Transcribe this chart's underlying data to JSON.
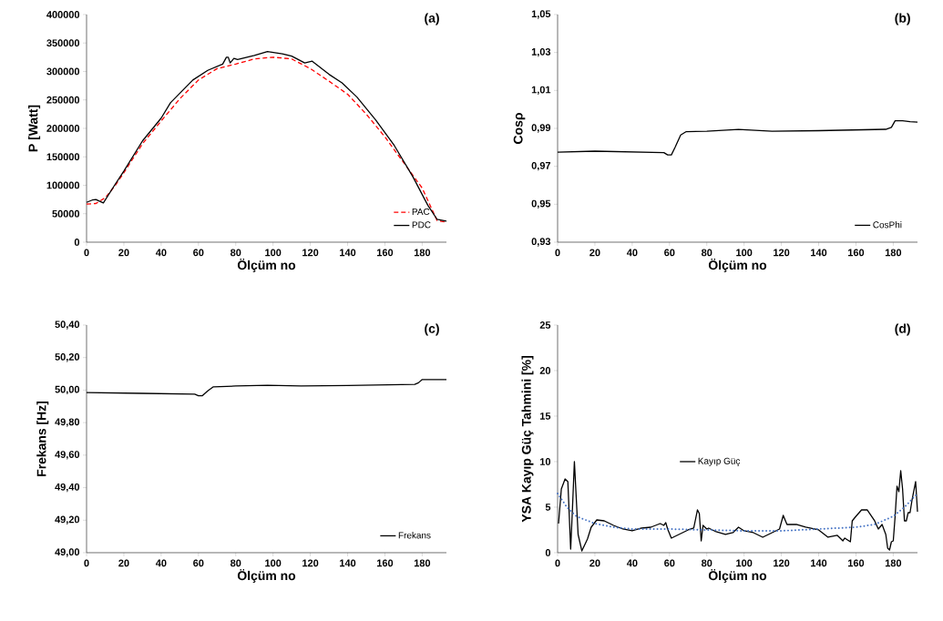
{
  "chart_data": [
    {
      "type": "line",
      "xlabel": "Ölçüm no",
      "ylabel": "P [Watt]",
      "annotations": [
        "(a)"
      ],
      "legend": "bottom right",
      "xlim": [
        0,
        193
      ],
      "xticks": [
        0,
        20,
        40,
        60,
        80,
        100,
        120,
        140,
        160,
        180
      ],
      "ylim": [
        0,
        400000
      ],
      "yticks": [
        0,
        50000,
        100000,
        150000,
        200000,
        250000,
        300000,
        350000,
        400000
      ],
      "line_style": "solid",
      "series": [
        {
          "name": "PAC",
          "color": "#ff0000",
          "line_style": "dashed",
          "x": [
            0,
            5,
            10,
            15,
            20,
            30,
            40,
            50,
            60,
            70,
            80,
            90,
            100,
            110,
            120,
            130,
            140,
            150,
            160,
            170,
            180,
            188,
            193
          ],
          "values": [
            67000,
            68000,
            78000,
            98000,
            122000,
            173000,
            213000,
            252000,
            285000,
            305000,
            313000,
            322000,
            325000,
            322000,
            305000,
            283000,
            260000,
            225000,
            185000,
            140000,
            95000,
            38000,
            35000
          ]
        },
        {
          "name": "PDC",
          "color": "#000000",
          "x": [
            0,
            3,
            5,
            9,
            15,
            20,
            30,
            40,
            45,
            57,
            65,
            73,
            75,
            76,
            77,
            79,
            81,
            90,
            97,
            105,
            110,
            117,
            121,
            130,
            137,
            145,
            155,
            165,
            175,
            183,
            188,
            193
          ],
          "values": [
            70000,
            74000,
            75000,
            69000,
            100000,
            125000,
            178000,
            218000,
            245000,
            285000,
            302000,
            313000,
            325000,
            325000,
            315000,
            323000,
            321000,
            328000,
            335000,
            331000,
            327000,
            315000,
            318000,
            295000,
            280000,
            255000,
            215000,
            170000,
            115000,
            65000,
            40000,
            37000
          ]
        }
      ]
    },
    {
      "type": "line",
      "xlabel": "Ölçüm no",
      "ylabel": "Cosρ",
      "annotations": [
        "(b)"
      ],
      "legend": "bottom right",
      "xlim": [
        0,
        193
      ],
      "xticks": [
        0,
        20,
        40,
        60,
        80,
        100,
        120,
        140,
        160,
        180
      ],
      "ylim": [
        0.93,
        1.05
      ],
      "yticks": [
        {
          "value": 0.93,
          "label": "0,93"
        },
        {
          "value": 0.95,
          "label": "0,95"
        },
        {
          "value": 0.97,
          "label": "0,97"
        },
        {
          "value": 0.99,
          "label": "0,99"
        },
        {
          "value": 1.01,
          "label": "1,01"
        },
        {
          "value": 1.03,
          "label": "1,03"
        },
        {
          "value": 1.05,
          "label": "1,05"
        }
      ],
      "line_style": "solid",
      "series": [
        {
          "name": "CosPhi",
          "color": "#000000",
          "x": [
            0,
            20,
            57,
            59,
            61,
            63,
            66,
            69,
            80,
            97,
            115,
            140,
            176,
            179,
            181,
            185,
            189,
            193
          ],
          "values": [
            0.9775,
            0.978,
            0.9772,
            0.976,
            0.976,
            0.98,
            0.9865,
            0.9883,
            0.9885,
            0.9895,
            0.9885,
            0.9888,
            0.9895,
            0.9905,
            0.994,
            0.994,
            0.9935,
            0.9933
          ]
        }
      ]
    },
    {
      "type": "line",
      "xlabel": "Ölçüm no",
      "ylabel": "Frekans [Hz]",
      "annotations": [
        "(c)"
      ],
      "legend": "bottom right",
      "xlim": [
        0,
        193
      ],
      "xticks": [
        0,
        20,
        40,
        60,
        80,
        100,
        120,
        140,
        160,
        180
      ],
      "ylim": [
        49.0,
        50.4
      ],
      "yticks": [
        {
          "value": 49.0,
          "label": "49,00"
        },
        {
          "value": 49.2,
          "label": "49,20"
        },
        {
          "value": 49.4,
          "label": "49,40"
        },
        {
          "value": 49.6,
          "label": "49,60"
        },
        {
          "value": 49.8,
          "label": "49,80"
        },
        {
          "value": 50.0,
          "label": "50,00"
        },
        {
          "value": 50.2,
          "label": "50,20"
        },
        {
          "value": 50.4,
          "label": "50,40"
        }
      ],
      "line_style": "solid",
      "series": [
        {
          "name": "Frekans",
          "color": "#000000",
          "x": [
            0,
            30,
            58,
            60,
            62,
            65,
            68,
            80,
            97,
            115,
            140,
            176,
            178,
            180,
            193
          ],
          "values": [
            49.985,
            49.98,
            49.975,
            49.965,
            49.965,
            49.995,
            50.02,
            50.025,
            50.03,
            50.025,
            50.028,
            50.035,
            50.045,
            50.065,
            50.065
          ]
        }
      ]
    },
    {
      "type": "line",
      "xlabel": "Ölçüm no",
      "ylabel": "YSA Kayıp Güç Tahmini [%]",
      "annotations": [
        "(d)"
      ],
      "legend": "left",
      "xlim": [
        0,
        193
      ],
      "xticks": [
        0,
        20,
        40,
        60,
        80,
        100,
        120,
        140,
        160,
        180
      ],
      "ylim": [
        0,
        25
      ],
      "yticks": [
        0,
        5,
        10,
        15,
        20,
        25
      ],
      "line_style": "solid",
      "series": [
        {
          "name": "Kayıp Güç",
          "color": "#000000",
          "x": [
            0.5,
            2,
            4,
            5.5,
            7,
            8,
            9,
            10,
            11,
            13,
            16,
            18,
            21,
            25,
            30,
            35,
            40,
            45,
            50,
            55,
            57,
            58,
            59,
            61,
            65,
            70,
            73,
            75,
            76,
            77,
            78,
            80,
            81,
            85,
            90,
            94,
            97,
            100,
            105,
            110,
            115,
            119,
            121,
            123,
            128,
            133,
            140,
            145,
            150,
            153,
            154,
            157,
            158,
            160,
            163,
            166,
            170,
            172,
            174,
            176,
            177,
            178,
            179,
            180,
            181,
            182,
            183,
            184,
            185,
            186,
            187,
            188,
            189,
            190,
            192,
            193
          ],
          "values": [
            3.2,
            7,
            8.1,
            7.8,
            0.4,
            5,
            10,
            6,
            2,
            0.2,
            1.5,
            2.8,
            3.6,
            3.5,
            3,
            2.6,
            2.4,
            2.7,
            2.8,
            3.2,
            3,
            3.3,
            2.6,
            1.6,
            2,
            2.5,
            2.7,
            4.7,
            4.3,
            1.3,
            3,
            2.6,
            2.7,
            2.3,
            2,
            2.2,
            2.8,
            2.4,
            2.2,
            1.7,
            2.2,
            2.6,
            4.1,
            3.1,
            3.1,
            2.8,
            2.5,
            1.7,
            1.9,
            1.3,
            1.6,
            1.2,
            3.5,
            4,
            4.7,
            4.7,
            3.5,
            2.6,
            3.1,
            2,
            0.5,
            0.3,
            1.2,
            1.3,
            4,
            7.3,
            6.7,
            9,
            7,
            3.5,
            3.5,
            4.4,
            4.4,
            5.7,
            7.8,
            4.5
          ]
        },
        {
          "color": "#4472c4",
          "line_style": "dotted",
          "x": [
            0,
            5,
            10,
            20,
            30,
            40,
            60,
            80,
            100,
            120,
            140,
            160,
            170,
            180,
            186,
            193
          ],
          "values": [
            6.5,
            5,
            4,
            3.2,
            2.8,
            2.6,
            2.6,
            2.5,
            2.4,
            2.4,
            2.6,
            2.8,
            3.1,
            4,
            5,
            6.5
          ]
        }
      ]
    }
  ]
}
